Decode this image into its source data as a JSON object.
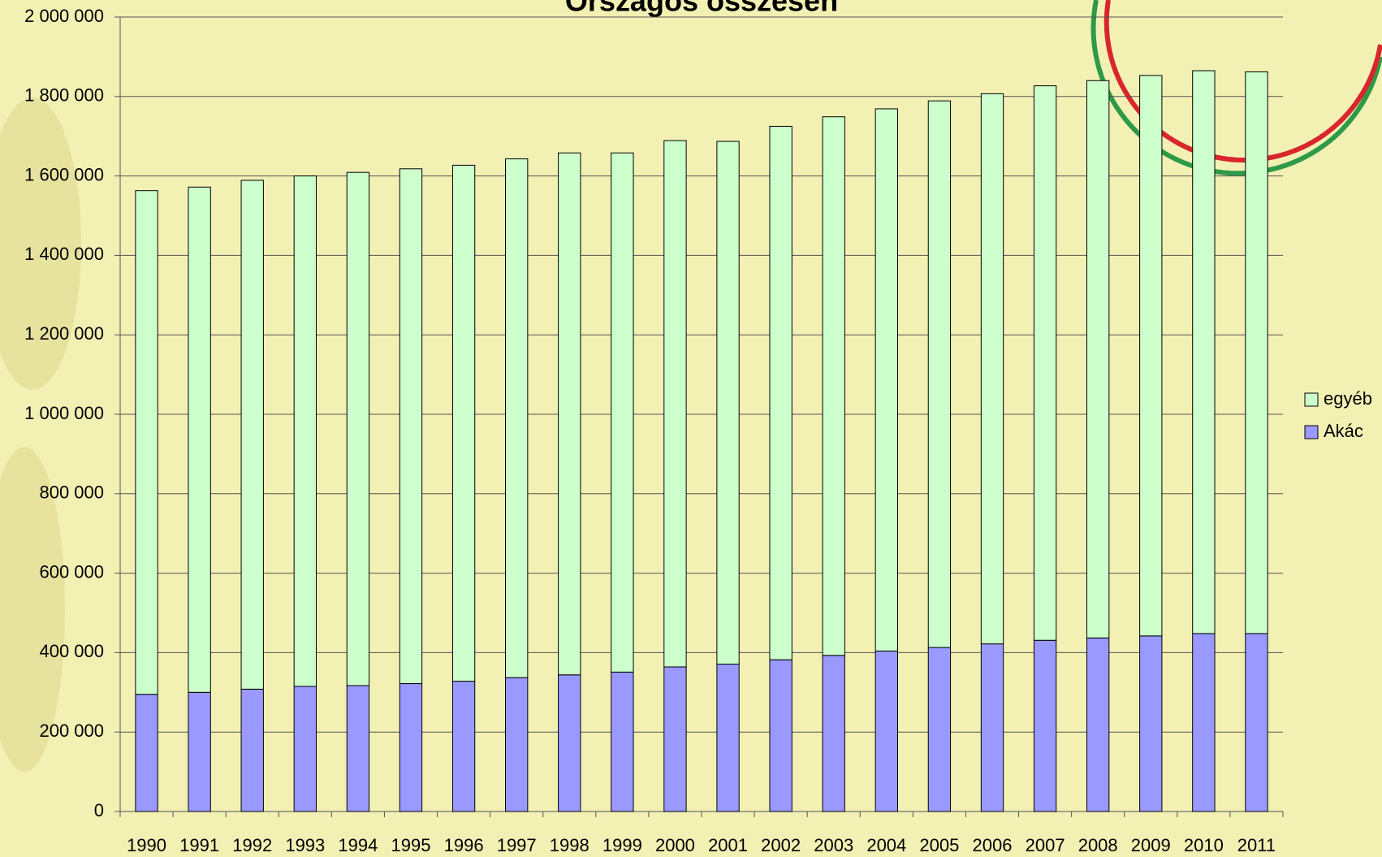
{
  "chart_data": {
    "type": "stacked_bar",
    "title": "Országos összesen",
    "categories": [
      "1990",
      "1991",
      "1992",
      "1993",
      "1994",
      "1995",
      "1996",
      "1997",
      "1998",
      "1999",
      "2000",
      "2001",
      "2002",
      "2003",
      "2004",
      "2005",
      "2006",
      "2007",
      "2008",
      "2009",
      "2010",
      "2011"
    ],
    "series": [
      {
        "name": "Akác",
        "color": "#9999ff",
        "values": [
          295000,
          300000,
          308000,
          315000,
          317000,
          322000,
          328000,
          337000,
          344000,
          351000,
          364000,
          371000,
          382000,
          393000,
          404000,
          413000,
          422000,
          431000,
          437000,
          442000,
          448000,
          448000
        ]
      },
      {
        "name": "egyéb",
        "color": "#ccffcc",
        "values": [
          1268000,
          1272000,
          1281000,
          1285000,
          1292000,
          1296000,
          1299000,
          1306000,
          1314000,
          1307000,
          1325000,
          1316000,
          1343000,
          1356000,
          1365000,
          1376000,
          1385000,
          1396000,
          1403000,
          1411000,
          1417000,
          1414000
        ]
      }
    ],
    "ylim": [
      0,
      2000000
    ],
    "yticks": [
      0,
      {
        "value": 200000,
        "label": "200 000"
      },
      {
        "value": 400000,
        "label": "400 000"
      },
      {
        "value": 600000,
        "label": "600 000"
      },
      {
        "value": 800000,
        "label": "800 000"
      },
      {
        "value": 1000000,
        "label": "1 000 000"
      },
      {
        "value": 1200000,
        "label": "1 200 000"
      },
      {
        "value": 1400000,
        "label": "1 400 000"
      },
      {
        "value": 1600000,
        "label": "1 600 000"
      },
      {
        "value": 1800000,
        "label": "1 800 000"
      },
      {
        "value": 2000000,
        "label": "2 000 000"
      }
    ],
    "grid": true,
    "legend": "right"
  }
}
